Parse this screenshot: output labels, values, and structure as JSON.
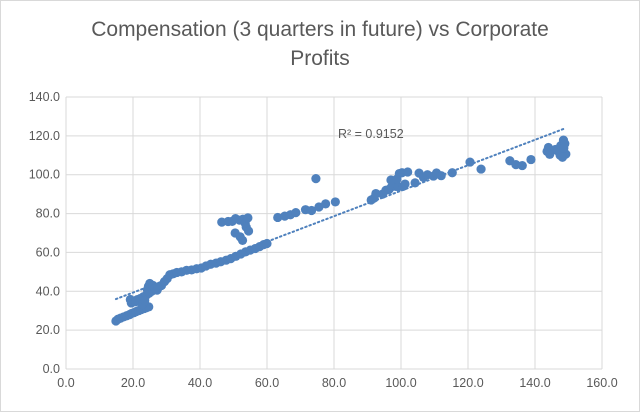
{
  "chart_data": {
    "type": "scatter",
    "title_lines": [
      "Compensation (3 quarters in future) vs Corporate",
      "Profits"
    ],
    "xlabel": "",
    "ylabel": "",
    "xlim": [
      0,
      160
    ],
    "ylim": [
      0,
      140
    ],
    "x_ticks": [
      "0.0",
      "20.0",
      "40.0",
      "60.0",
      "80.0",
      "100.0",
      "120.0",
      "140.0",
      "160.0"
    ],
    "y_ticks": [
      "0.0",
      "20.0",
      "40.0",
      "60.0",
      "80.0",
      "100.0",
      "120.0",
      "140.0"
    ],
    "grid": true,
    "marker_color": "#4f81bd",
    "trendline": {
      "type": "linear",
      "from": [
        14.9,
        36.0
      ],
      "to": [
        148.9,
        123.8
      ],
      "style": "dotted",
      "color": "#4f81bd"
    },
    "annotation": "R² = 0.9152",
    "points": [
      [
        14.9,
        24.7
      ],
      [
        15.5,
        25.6
      ],
      [
        16.3,
        26.2
      ],
      [
        17.2,
        26.8
      ],
      [
        18.1,
        27.4
      ],
      [
        19.0,
        28.0
      ],
      [
        19.6,
        28.6
      ],
      [
        20.3,
        29.0
      ],
      [
        21.0,
        29.6
      ],
      [
        21.8,
        30.1
      ],
      [
        22.5,
        30.6
      ],
      [
        23.3,
        31.1
      ],
      [
        24.0,
        31.5
      ],
      [
        24.7,
        32.0
      ],
      [
        19.5,
        34.0
      ],
      [
        20.4,
        35.0
      ],
      [
        21.3,
        35.7
      ],
      [
        22.2,
        36.3
      ],
      [
        23.1,
        37.2
      ],
      [
        24.0,
        38.0
      ],
      [
        24.8,
        39.0
      ],
      [
        25.6,
        40.0
      ],
      [
        19.2,
        35.8
      ],
      [
        20.8,
        34.6
      ],
      [
        22.8,
        33.2
      ],
      [
        23.5,
        35.2
      ],
      [
        24.3,
        40.8
      ],
      [
        24.6,
        42.5
      ],
      [
        25.0,
        44.0
      ],
      [
        26.0,
        43.0
      ],
      [
        26.6,
        41.5
      ],
      [
        27.2,
        40.6
      ],
      [
        27.6,
        42.0
      ],
      [
        28.5,
        43.0
      ],
      [
        29.4,
        45.0
      ],
      [
        30.2,
        46.5
      ],
      [
        31.0,
        48.5
      ],
      [
        32.0,
        49.0
      ],
      [
        33.1,
        49.7
      ],
      [
        34.5,
        50.0
      ],
      [
        36.0,
        50.8
      ],
      [
        37.5,
        51.0
      ],
      [
        39.0,
        51.6
      ],
      [
        40.4,
        52.0
      ],
      [
        41.8,
        53.0
      ],
      [
        43.2,
        53.9
      ],
      [
        44.8,
        54.5
      ],
      [
        46.2,
        55.2
      ],
      [
        47.8,
        56.0
      ],
      [
        49.2,
        56.8
      ],
      [
        50.7,
        58.0
      ],
      [
        52.2,
        59.2
      ],
      [
        53.6,
        60.3
      ],
      [
        55.0,
        61.2
      ],
      [
        56.5,
        62.0
      ],
      [
        57.8,
        63.0
      ],
      [
        59.0,
        64.0
      ],
      [
        60.0,
        64.6
      ],
      [
        46.5,
        75.6
      ],
      [
        48.4,
        75.9
      ],
      [
        49.6,
        76.0
      ],
      [
        50.6,
        77.4
      ],
      [
        51.8,
        76.6
      ],
      [
        52.8,
        77.1
      ],
      [
        53.5,
        75.0
      ],
      [
        54.3,
        77.8
      ],
      [
        50.5,
        70.0
      ],
      [
        52.0,
        68.0
      ],
      [
        52.7,
        66.2
      ],
      [
        53.8,
        73.0
      ],
      [
        54.5,
        71.0
      ],
      [
        63.2,
        78.0
      ],
      [
        65.3,
        78.7
      ],
      [
        67.0,
        79.4
      ],
      [
        68.6,
        80.5
      ],
      [
        71.5,
        82.0
      ],
      [
        73.3,
        81.6
      ],
      [
        75.5,
        83.4
      ],
      [
        77.5,
        85.0
      ],
      [
        80.4,
        86.0
      ],
      [
        74.6,
        98.0
      ],
      [
        91.1,
        87.0
      ],
      [
        92.0,
        88.0
      ],
      [
        92.5,
        90.3
      ],
      [
        94.5,
        90.0
      ],
      [
        95.5,
        92.0
      ],
      [
        96.4,
        92.4
      ],
      [
        97.2,
        93.8
      ],
      [
        98.4,
        94.0
      ],
      [
        99.2,
        93.8
      ],
      [
        100.6,
        94.0
      ],
      [
        101.2,
        95.2
      ],
      [
        97.0,
        97.3
      ],
      [
        98.8,
        97.8
      ],
      [
        99.5,
        100.6
      ],
      [
        100.3,
        101.0
      ],
      [
        102.0,
        101.4
      ],
      [
        104.2,
        95.8
      ],
      [
        105.4,
        100.8
      ],
      [
        106.7,
        98.6
      ],
      [
        107.9,
        100.0
      ],
      [
        109.7,
        99.3
      ],
      [
        110.6,
        100.9
      ],
      [
        112.0,
        99.5
      ],
      [
        115.3,
        101.0
      ],
      [
        120.6,
        106.5
      ],
      [
        123.9,
        102.9
      ],
      [
        132.5,
        107.2
      ],
      [
        134.3,
        105.2
      ],
      [
        136.2,
        104.7
      ],
      [
        138.8,
        107.8
      ],
      [
        143.6,
        112.0
      ],
      [
        144.0,
        114.0
      ],
      [
        144.4,
        110.5
      ],
      [
        146.1,
        113.0
      ],
      [
        146.8,
        112.2
      ],
      [
        147.5,
        110.0
      ],
      [
        147.7,
        115.0
      ],
      [
        148.5,
        117.8
      ],
      [
        148.9,
        116.0
      ],
      [
        149.2,
        110.6
      ],
      [
        148.2,
        109.0
      ],
      [
        148.6,
        113.7
      ]
    ]
  }
}
